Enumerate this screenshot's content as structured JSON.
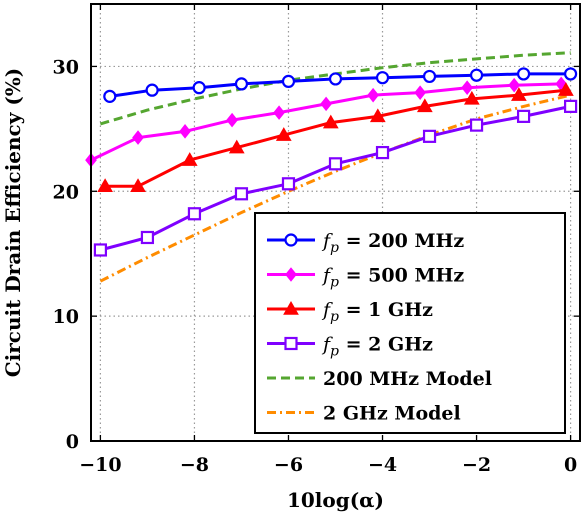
{
  "chart_data": {
    "type": "line",
    "xlabel": "10log(α)",
    "ylabel": "Circuit Drain Efficiency (%)",
    "xlim": [
      -10.2,
      0.2
    ],
    "ylim": [
      0,
      35
    ],
    "xticks": [
      -10,
      -8,
      -6,
      -4,
      -2,
      0
    ],
    "yticks": [
      0,
      10,
      20,
      30
    ],
    "xtick_labels": [
      "−10",
      "−8",
      "−6",
      "−4",
      "−2",
      "0"
    ],
    "ytick_labels": [
      "0",
      "10",
      "20",
      "30"
    ],
    "grid": true,
    "legend_position": "bottom-right",
    "series": [
      {
        "name": "f_p = 200 MHz",
        "legend_parts": [
          "f",
          "p",
          " = 200 MHz"
        ],
        "color": "#0000ff",
        "marker": "circle",
        "dash": "solid",
        "x": [
          -9.8,
          -8.9,
          -7.9,
          -7.0,
          -6.0,
          -5.0,
          -4.0,
          -3.0,
          -2.0,
          -1.0,
          0.0
        ],
        "y": [
          27.6,
          28.1,
          28.3,
          28.6,
          28.8,
          29.0,
          29.1,
          29.2,
          29.3,
          29.4,
          29.4
        ]
      },
      {
        "name": "f_p = 500 MHz",
        "legend_parts": [
          "f",
          "p",
          " = 500 MHz"
        ],
        "color": "#ff00ff",
        "marker": "diamond",
        "dash": "solid",
        "x": [
          -10.2,
          -9.2,
          -8.2,
          -7.2,
          -6.2,
          -5.2,
          -4.2,
          -3.2,
          -2.2,
          -1.2,
          -0.2
        ],
        "y": [
          22.5,
          24.3,
          24.8,
          25.7,
          26.3,
          27.0,
          27.7,
          27.9,
          28.3,
          28.5,
          28.6
        ]
      },
      {
        "name": "f_p = 1 GHz",
        "legend_parts": [
          "f",
          "p",
          " = 1 GHz"
        ],
        "color": "#ff0000",
        "marker": "triangle",
        "dash": "solid",
        "x": [
          -9.9,
          -9.2,
          -8.1,
          -7.1,
          -6.1,
          -5.1,
          -4.1,
          -3.1,
          -2.1,
          -1.1,
          -0.1
        ],
        "y": [
          20.4,
          20.4,
          22.5,
          23.5,
          24.5,
          25.5,
          26.0,
          26.8,
          27.4,
          27.7,
          28.1
        ]
      },
      {
        "name": "f_p = 2 GHz",
        "legend_parts": [
          "f",
          "p",
          " = 2 GHz"
        ],
        "color": "#7f00ff",
        "marker": "square",
        "dash": "solid",
        "x": [
          -10.0,
          -9.0,
          -8.0,
          -7.0,
          -6.0,
          -5.0,
          -4.0,
          -3.0,
          -2.0,
          -1.0,
          0.0
        ],
        "y": [
          15.3,
          16.3,
          18.2,
          19.8,
          20.6,
          22.2,
          23.1,
          24.4,
          25.3,
          26.0,
          26.8
        ]
      },
      {
        "name": "200 MHz Model",
        "legend_parts": [
          "",
          "",
          "200 MHz Model"
        ],
        "color": "#55a630",
        "marker": "none",
        "dash": "dashed",
        "x": [
          -10.0,
          -9.0,
          -8.0,
          -7.0,
          -6.0,
          -5.0,
          -4.0,
          -3.0,
          -2.0,
          -1.0,
          0.0
        ],
        "y": [
          25.4,
          26.5,
          27.4,
          28.2,
          28.9,
          29.4,
          29.9,
          30.3,
          30.6,
          30.9,
          31.1
        ]
      },
      {
        "name": "2 GHz Model",
        "legend_parts": [
          "",
          "",
          "2 GHz Model"
        ],
        "color": "#ff8c00",
        "marker": "none",
        "dash": "dashdot",
        "x": [
          -10.0,
          -9.0,
          -8.0,
          -7.0,
          -6.0,
          -5.0,
          -4.0,
          -3.0,
          -2.0,
          -1.0,
          0.0
        ],
        "y": [
          12.8,
          14.7,
          16.5,
          18.3,
          20.0,
          21.6,
          23.1,
          24.5,
          25.8,
          26.8,
          27.7
        ]
      }
    ]
  }
}
